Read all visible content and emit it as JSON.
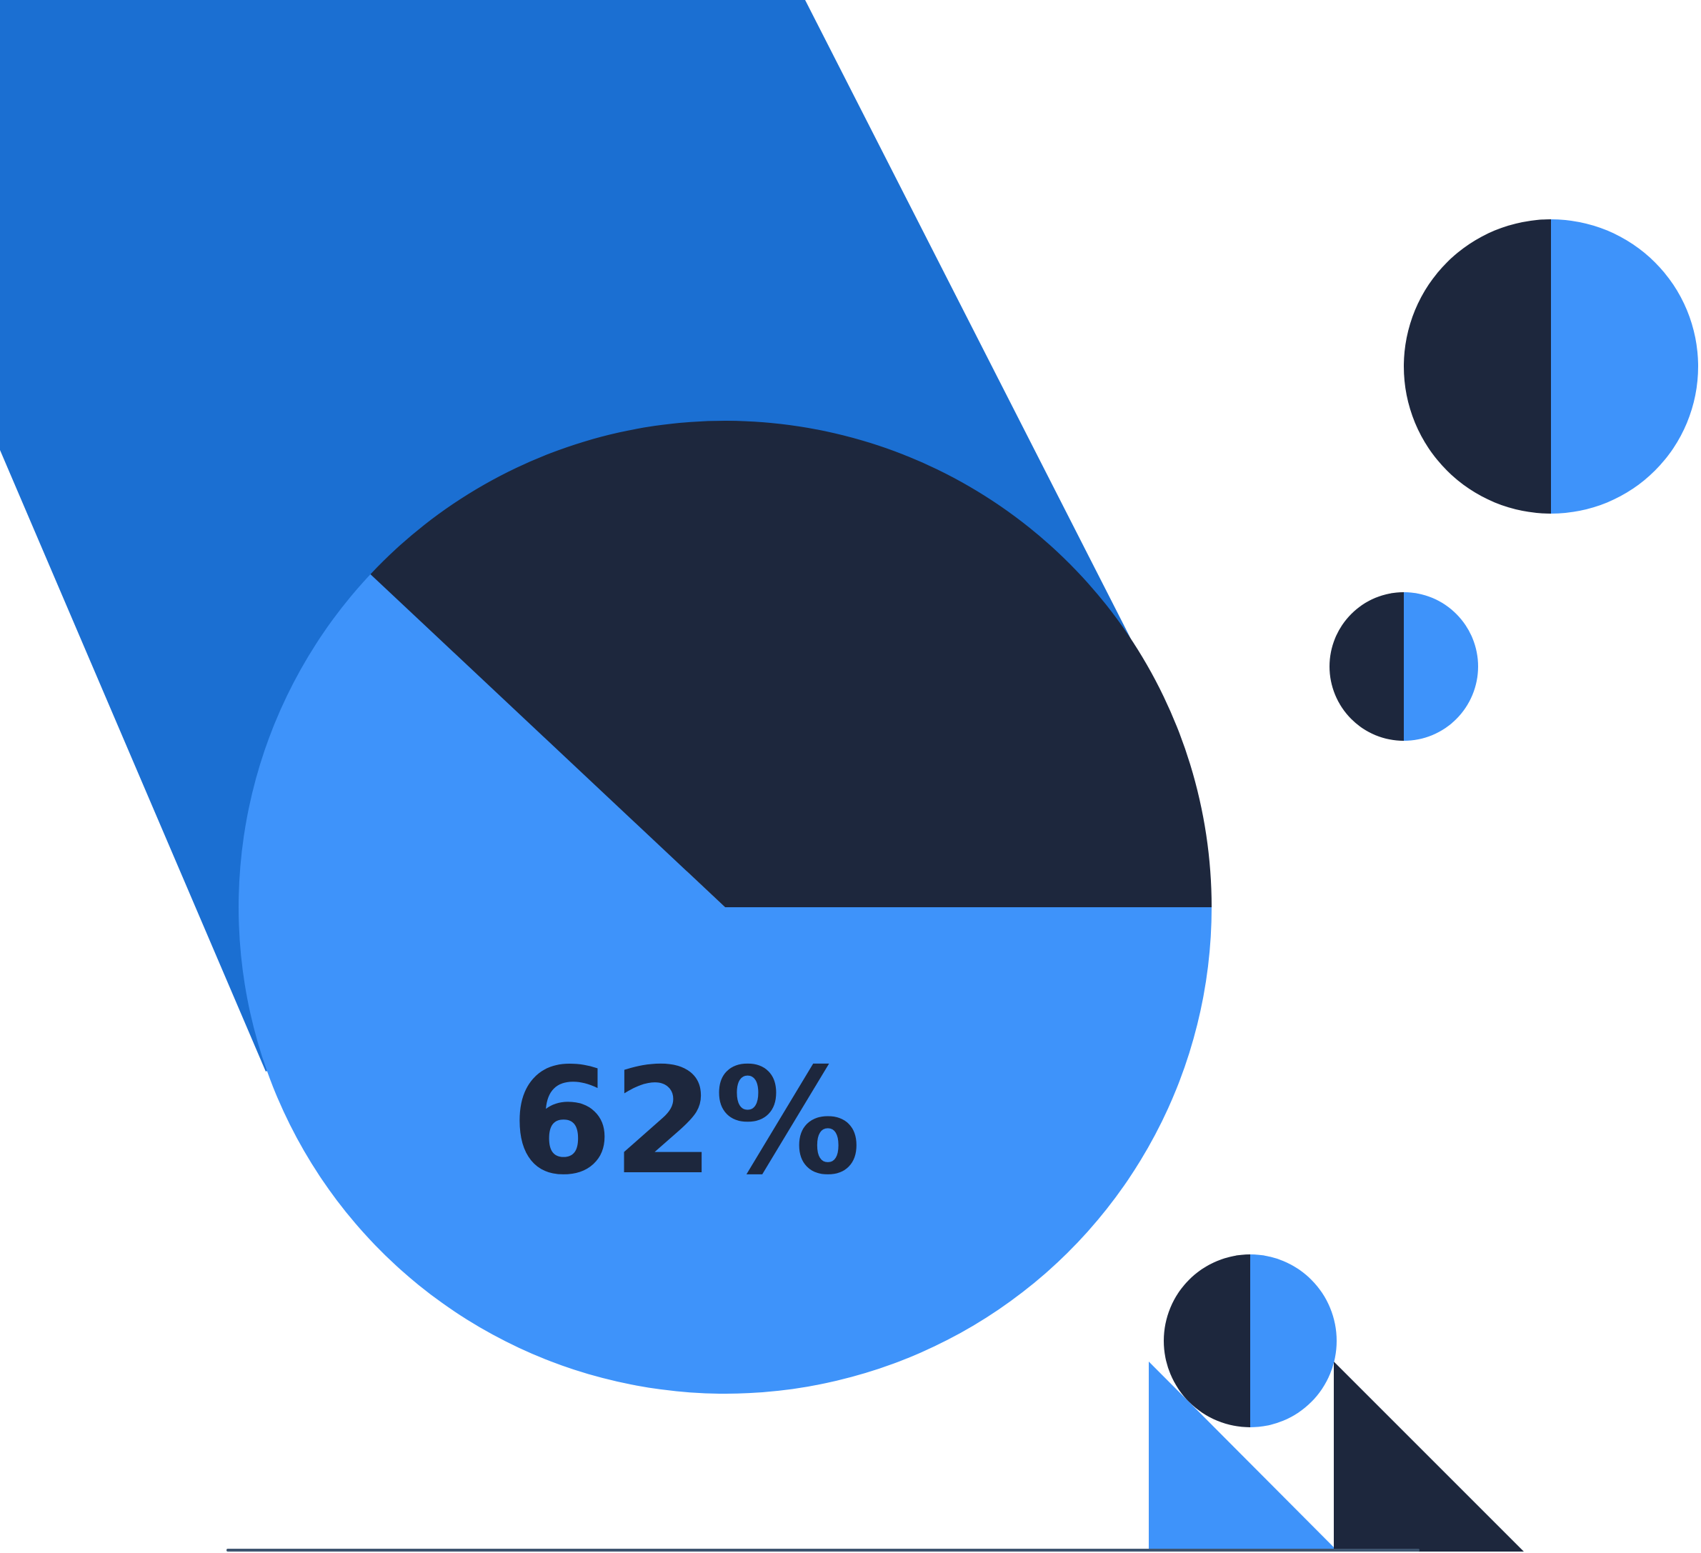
{
  "chart_data": {
    "type": "pie",
    "values": [
      62,
      38
    ],
    "data_label": "62%"
  },
  "colors": {
    "background": "#ffffff",
    "backdrop_band": "#1b6fd2",
    "primary_slice": "#3e93fa",
    "secondary_slice": "#1d273d",
    "baseline": "#3f5570"
  }
}
